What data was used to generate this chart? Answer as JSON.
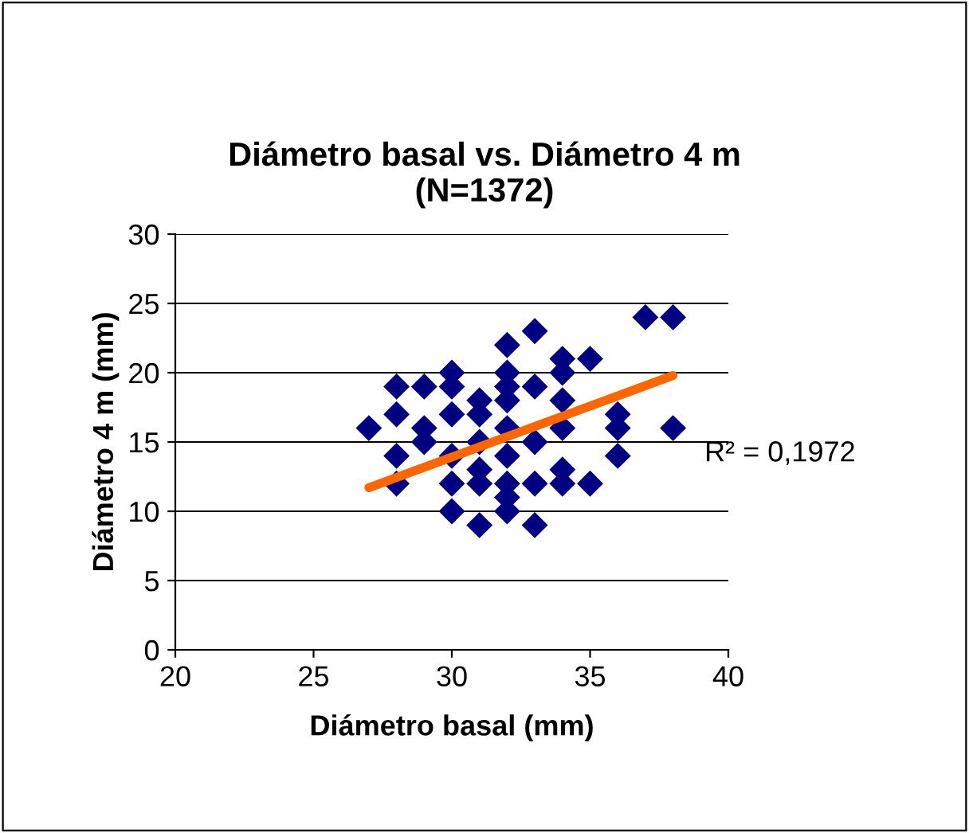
{
  "chart_data": {
    "type": "scatter",
    "title": "Diámetro basal vs. Diámetro 4 m\n(N=1372)",
    "xlabel": "Diámetro basal (mm)",
    "ylabel": "Diámetro 4 m (mm)",
    "xlim": [
      20,
      40
    ],
    "ylim": [
      0,
      30
    ],
    "xticks": [
      20,
      25,
      30,
      35,
      40
    ],
    "yticks": [
      0,
      5,
      10,
      15,
      20,
      25,
      30
    ],
    "grid": "y",
    "series": [
      {
        "marker": "diamond",
        "color": "#000080",
        "x": [
          27,
          28,
          28,
          28,
          28,
          29,
          29,
          29,
          30,
          30,
          30,
          30,
          30,
          30,
          31,
          31,
          31,
          31,
          31,
          31,
          32,
          32,
          32,
          32,
          32,
          32,
          32,
          32,
          32,
          33,
          33,
          33,
          33,
          33,
          34,
          34,
          34,
          34,
          34,
          34,
          35,
          35,
          36,
          36,
          36,
          37,
          38,
          38
        ],
        "values": [
          16,
          19,
          17,
          14,
          12,
          19,
          16,
          15,
          20,
          19,
          17,
          14,
          12,
          10,
          18,
          17,
          15,
          13,
          12,
          9,
          22,
          20,
          19,
          18,
          16,
          14,
          12,
          11,
          10,
          23,
          19,
          15,
          12,
          9,
          21,
          20,
          18,
          16,
          13,
          12,
          21,
          12,
          17,
          16,
          14,
          24,
          24,
          16
        ]
      },
      {
        "type": "line",
        "color": "#ff6600",
        "x": [
          27,
          38
        ],
        "values": [
          11.7,
          19.8
        ]
      }
    ],
    "annotations": [
      "R² = 0,1972"
    ]
  }
}
